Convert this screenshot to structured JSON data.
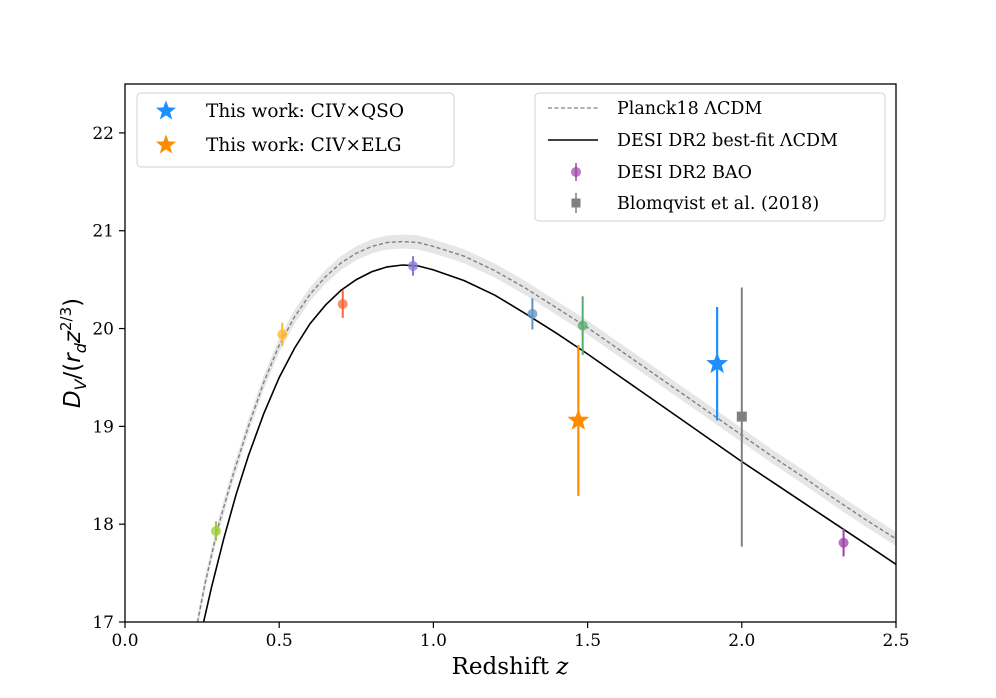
{
  "chart_data": {
    "type": "scatter",
    "xlabel_main": "Redshift ",
    "xlabel_var": "z",
    "ylabel": "D_V/(r_d z^{2/3})",
    "xlim": [
      0.0,
      2.5
    ],
    "ylim": [
      17,
      22.5
    ],
    "xticks": [
      "0.0",
      "0.5",
      "1.0",
      "1.5",
      "2.0",
      "2.5"
    ],
    "xtick_values": [
      0.0,
      0.5,
      1.0,
      1.5,
      2.0,
      2.5
    ],
    "yticks": [
      "17",
      "18",
      "19",
      "20",
      "21",
      "22"
    ],
    "ytick_values": [
      17,
      18,
      19,
      20,
      21,
      22
    ],
    "grid": false,
    "planck_curve": {
      "name": "Planck18 ΛCDM",
      "color": "#808080",
      "band_color": "#e6e6e6",
      "points": [
        [
          0.235,
          17.0
        ],
        [
          0.26,
          17.4
        ],
        [
          0.3,
          17.95
        ],
        [
          0.35,
          18.5
        ],
        [
          0.4,
          19.0
        ],
        [
          0.45,
          19.45
        ],
        [
          0.5,
          19.83
        ],
        [
          0.55,
          20.12
        ],
        [
          0.6,
          20.35
        ],
        [
          0.65,
          20.53
        ],
        [
          0.7,
          20.67
        ],
        [
          0.75,
          20.77
        ],
        [
          0.8,
          20.84
        ],
        [
          0.85,
          20.88
        ],
        [
          0.9,
          20.89
        ],
        [
          0.95,
          20.88
        ],
        [
          1.0,
          20.84
        ],
        [
          1.1,
          20.74
        ],
        [
          1.2,
          20.59
        ],
        [
          1.3,
          20.41
        ],
        [
          1.4,
          20.21
        ],
        [
          1.5,
          20.01
        ],
        [
          1.6,
          19.79
        ],
        [
          1.7,
          19.57
        ],
        [
          1.8,
          19.35
        ],
        [
          1.9,
          19.13
        ],
        [
          2.0,
          18.91
        ],
        [
          2.1,
          18.69
        ],
        [
          2.2,
          18.48
        ],
        [
          2.3,
          18.26
        ],
        [
          2.4,
          18.05
        ],
        [
          2.5,
          17.85
        ]
      ]
    },
    "desi_curve": {
      "name": "DESI DR2 best-fit ΛCDM",
      "color": "#000000",
      "points": [
        [
          0.255,
          17.0
        ],
        [
          0.28,
          17.35
        ],
        [
          0.32,
          17.85
        ],
        [
          0.36,
          18.3
        ],
        [
          0.4,
          18.7
        ],
        [
          0.45,
          19.13
        ],
        [
          0.5,
          19.5
        ],
        [
          0.55,
          19.8
        ],
        [
          0.6,
          20.05
        ],
        [
          0.65,
          20.24
        ],
        [
          0.7,
          20.39
        ],
        [
          0.75,
          20.5
        ],
        [
          0.8,
          20.58
        ],
        [
          0.85,
          20.63
        ],
        [
          0.9,
          20.65
        ],
        [
          0.95,
          20.64
        ],
        [
          1.0,
          20.6
        ],
        [
          1.1,
          20.49
        ],
        [
          1.2,
          20.34
        ],
        [
          1.3,
          20.15
        ],
        [
          1.4,
          19.95
        ],
        [
          1.5,
          19.74
        ],
        [
          1.6,
          19.52
        ],
        [
          1.7,
          19.3
        ],
        [
          1.8,
          19.08
        ],
        [
          1.9,
          18.86
        ],
        [
          2.0,
          18.64
        ],
        [
          2.1,
          18.43
        ],
        [
          2.2,
          18.22
        ],
        [
          2.3,
          18.01
        ],
        [
          2.4,
          17.8
        ],
        [
          2.5,
          17.59
        ]
      ]
    },
    "desi_bao": {
      "name": "DESI DR2 BAO",
      "points": [
        {
          "z": 0.295,
          "y": 17.93,
          "err": 0.1,
          "color": "#9acd32"
        },
        {
          "z": 0.51,
          "y": 19.94,
          "err": 0.12,
          "color": "#ffb62e"
        },
        {
          "z": 0.706,
          "y": 20.25,
          "err": 0.14,
          "color": "#f4673e"
        },
        {
          "z": 0.934,
          "y": 20.64,
          "err": 0.1,
          "color": "#8a74d6"
        },
        {
          "z": 1.321,
          "y": 20.15,
          "err": 0.16,
          "color": "#5f93c0"
        },
        {
          "z": 1.484,
          "y": 20.03,
          "err": 0.3,
          "color": "#56ab72"
        },
        {
          "z": 2.33,
          "y": 17.81,
          "err": 0.14,
          "color": "#a03fa8"
        }
      ]
    },
    "blomqvist": {
      "name": "Blomqvist et al. (2018)",
      "z": 2.0,
      "y": 19.1,
      "err_up": 1.32,
      "err_down": 1.33,
      "color": "#808080"
    },
    "this_work": [
      {
        "name": "This work: CIV×QSO",
        "z": 1.92,
        "y": 19.64,
        "err": 0.58,
        "color": "#1e8fff"
      },
      {
        "name": "This work: CIV×ELG",
        "z": 1.47,
        "y": 19.06,
        "err": 0.77,
        "color": "#ff8c00"
      }
    ],
    "legend_left": [
      "This work: CIV×QSO",
      "This work: CIV×ELG"
    ],
    "legend_right": [
      "Planck18 ΛCDM",
      "DESI DR2 best-fit ΛCDM",
      "DESI DR2 BAO",
      "Blomqvist et al. (2018)"
    ]
  }
}
